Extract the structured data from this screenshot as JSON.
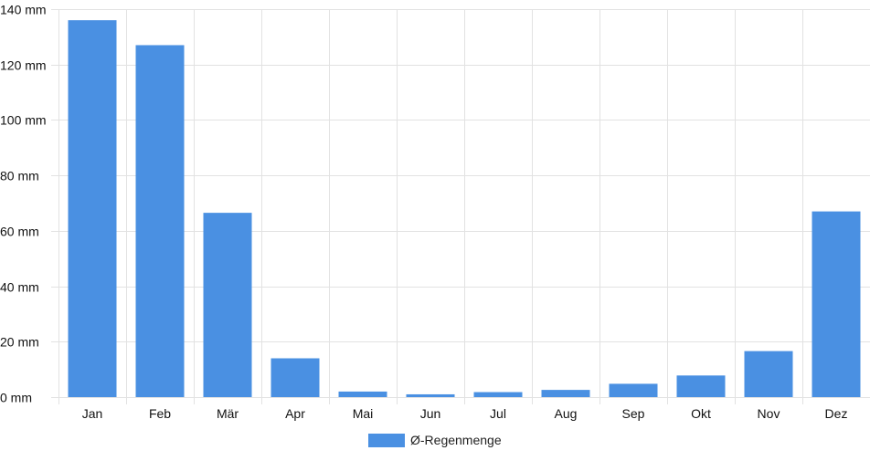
{
  "colors": {
    "bar": "#4a90e2",
    "grid": "#e2e2e2",
    "axis_text": "#111111"
  },
  "chart_data": {
    "type": "bar",
    "categories": [
      "Jan",
      "Feb",
      "Mär",
      "Apr",
      "Mai",
      "Jun",
      "Jul",
      "Aug",
      "Sep",
      "Okt",
      "Nov",
      "Dez"
    ],
    "series": [
      {
        "name": "Ø-Regenmenge",
        "values": [
          136,
          127,
          66.5,
          14,
          2,
          1,
          1.8,
          2.6,
          4.8,
          7.8,
          16.6,
          67
        ]
      }
    ],
    "y_unit": "mm",
    "ylim": [
      0,
      140
    ],
    "y_ticks": [
      0,
      20,
      40,
      60,
      80,
      100,
      120,
      140
    ],
    "y_tick_labels": [
      "0 mm",
      "20 mm",
      "40 mm",
      "60 mm",
      "80 mm",
      "100 mm",
      "120 mm",
      "140 mm"
    ],
    "grid": true,
    "legend_position": "bottom-center"
  }
}
